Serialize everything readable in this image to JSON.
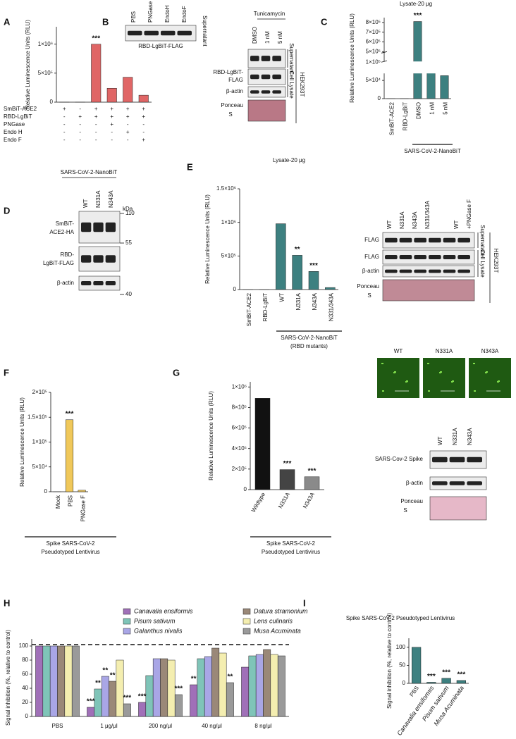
{
  "chart_data": [
    {
      "type": "bar",
      "label": "A",
      "ylabel": "Relative Luminescence Units (RLU)",
      "values": [
        0,
        0,
        1000000,
        240000,
        430000,
        120000
      ],
      "color": "#e06666",
      "ylim": [
        0,
        1300000
      ],
      "yticks": [
        0,
        {
          "value": 500000,
          "label": "5×10⁵"
        },
        {
          "value": 1000000,
          "label": "1×10⁶"
        }
      ],
      "annotations": [
        {
          "text": "***",
          "index": 2
        }
      ],
      "table": [
        {
          "label": "SmBiT-ACE2",
          "cells": [
            "+",
            "-",
            "+",
            "+",
            "+",
            "+"
          ]
        },
        {
          "label": "RBD-LgBiT",
          "cells": [
            "-",
            "+",
            "+",
            "+",
            "+",
            "+"
          ]
        },
        {
          "label": "PNGase",
          "cells": [
            "-",
            "-",
            "-",
            "+",
            "-",
            "-"
          ]
        },
        {
          "label": "Endo H",
          "cells": [
            "-",
            "-",
            "-",
            "-",
            "+",
            "-"
          ]
        },
        {
          "label": "Endo F",
          "cells": [
            "-",
            "-",
            "-",
            "-",
            "-",
            "+"
          ]
        }
      ]
    },
    {
      "type": "bar",
      "label": "C",
      "title": "Lysate-20 μg",
      "ylabel": "Relative Luminescence Units (RLU)",
      "categories": [
        "SmBiT-ACE2",
        "RBD-LgBiT",
        "DMSO",
        "1 nM",
        "5 nM"
      ],
      "values": [
        0,
        0,
        810000,
        88000,
        63000
      ],
      "color": "#3d8080",
      "ylim": [
        0,
        850000
      ],
      "ybreak": [
        100000,
        500000
      ],
      "yticks": [
        0,
        {
          "value": 50000,
          "label": "5×10⁴"
        },
        {
          "value": 100000,
          "label": "1×10⁵"
        },
        {
          "value": 500000,
          "label": "5×10⁵"
        },
        {
          "value": 600000,
          "label": "6×10⁵"
        },
        {
          "value": 700000,
          "label": "7×10⁵"
        },
        {
          "value": 800000,
          "label": "8×10⁵"
        }
      ],
      "annotations": [
        {
          "text": "***",
          "index": 2
        }
      ],
      "group_label": [
        "SARS-CoV-2-NanoBiT"
      ]
    },
    {
      "type": "bar",
      "label": "E",
      "title": "Lysate-20 μg",
      "ylabel": "Relative Luminescence Units (RLU)",
      "categories": [
        "SmBiT-ACE2",
        "RBD-LgBiT",
        "WT",
        "N331A",
        "N343A",
        "N331/343A"
      ],
      "values": [
        0,
        0,
        980000,
        510000,
        270000,
        30000
      ],
      "color": "#3d8080",
      "ylim": [
        0,
        1500000
      ],
      "yticks": [
        0,
        {
          "value": 500000,
          "label": "5×10⁵"
        },
        {
          "value": 1000000,
          "label": "1×10⁶"
        },
        {
          "value": 1500000,
          "label": "1.5×10⁶"
        }
      ],
      "annotations": [
        {
          "text": "**",
          "index": 3
        },
        {
          "text": "***",
          "index": 4
        }
      ],
      "group_label": [
        "SARS-CoV-2-NanoBiT",
        "(RBD mutants)"
      ]
    },
    {
      "type": "bar",
      "label": "F",
      "ylabel": "Relative Luminescence Units (RLU)",
      "categories": [
        "Mock",
        "PBS",
        "PNGase F"
      ],
      "values": [
        0,
        145000,
        3000
      ],
      "color": "#f0c85a",
      "ylim": [
        0,
        200000
      ],
      "yticks": [
        0,
        {
          "value": 50000,
          "label": "5×10⁴"
        },
        {
          "value": 100000,
          "label": "1×10⁵"
        },
        {
          "value": 150000,
          "label": "1.5×10⁵"
        },
        {
          "value": 200000,
          "label": "2×10⁵"
        }
      ],
      "annotations": [
        {
          "text": "***",
          "index": 1
        }
      ],
      "group_label": [
        "Spike SARS-CoV-2",
        "Pseudotyped Lentivirus"
      ]
    },
    {
      "type": "bar",
      "label": "G",
      "ylabel": "Relative Luminescence Units (RLU)",
      "categories": [
        "Wildtype",
        "N331A",
        "N343A"
      ],
      "values": [
        890000,
        195000,
        125000
      ],
      "colors": [
        "#111111",
        "#444444",
        "#8a8a8a"
      ],
      "ylim": [
        0,
        1050000
      ],
      "yticks": [
        0,
        {
          "value": 200000,
          "label": "2×10⁵"
        },
        {
          "value": 400000,
          "label": "4×10⁵"
        },
        {
          "value": 600000,
          "label": "6×10⁵"
        },
        {
          "value": 800000,
          "label": "8×10⁵"
        },
        {
          "value": 1000000,
          "label": "1×10⁶"
        }
      ],
      "annotations": [
        {
          "text": "***",
          "index": 1
        },
        {
          "text": "***",
          "index": 2
        }
      ],
      "group_label": [
        "Spike SARS-CoV-2",
        "Pseudotyped Lentivirus"
      ]
    },
    {
      "type": "bar",
      "label": "H",
      "ylabel": "Signal inhibition (%, relative to  control)",
      "categories": [
        "PBS",
        "1 μg/μl",
        "200 ng/μl",
        "40 ng/μl",
        "8 ng/μl"
      ],
      "series": [
        {
          "name": "Canavalia ensiformis",
          "color": "#a070b8",
          "values": [
            100,
            13,
            20,
            45,
            70
          ]
        },
        {
          "name": "Pisum sativum",
          "color": "#7fc4b8",
          "values": [
            100,
            39,
            58,
            82,
            86
          ]
        },
        {
          "name": "Galanthus nivalis",
          "color": "#a9a6e6",
          "values": [
            100,
            57,
            82,
            85,
            88
          ]
        },
        {
          "name": "Datura stramonium",
          "color": "#9a8878",
          "values": [
            100,
            50,
            82,
            97,
            95
          ]
        },
        {
          "name": "Lens culinaris",
          "color": "#f4eeb0",
          "values": [
            100,
            80,
            80,
            90,
            88
          ]
        },
        {
          "name": "Musa Acuminata",
          "color": "#9a9a9a",
          "values": [
            100,
            18,
            31,
            48,
            86
          ]
        }
      ],
      "ylim": [
        0,
        110
      ],
      "yticks": [
        0,
        20,
        40,
        60,
        80,
        100
      ],
      "reference_line": 102,
      "annotations": [
        {
          "text": "***",
          "series": 0,
          "index": 1
        },
        {
          "text": "**",
          "series": 1,
          "index": 1
        },
        {
          "text": "**",
          "series": 2,
          "index": 1
        },
        {
          "text": "**",
          "series": 3,
          "index": 1
        },
        {
          "text": "***",
          "series": 5,
          "index": 1
        },
        {
          "text": "***",
          "series": 0,
          "index": 2
        },
        {
          "text": "***",
          "series": 5,
          "index": 2
        },
        {
          "text": "**",
          "series": 0,
          "index": 3
        },
        {
          "text": "**",
          "series": 5,
          "index": 3
        }
      ]
    },
    {
      "type": "bar",
      "label": "I",
      "title": "Spike SARS-CoV-2 Pseudotyped Lentivirus",
      "ylabel": "Signal inhibition (%, relative to  control)",
      "categories": [
        "PBS",
        "Canavalia ensiformis",
        "Pisum sativum",
        "Musa Acuminata"
      ],
      "values": [
        100,
        3,
        14,
        8
      ],
      "color": "#3d8080",
      "ylim": [
        0,
        125
      ],
      "yticks": [
        0,
        50,
        100
      ],
      "annotations": [
        {
          "text": "***",
          "index": 1
        },
        {
          "text": "***",
          "index": 2
        },
        {
          "text": "***",
          "index": 3
        }
      ]
    }
  ],
  "blots": {
    "A": {
      "lanes": [
        "PBS",
        "PNGase",
        "EndoH",
        "EndoF"
      ],
      "row": "RBD-LgBiT-FLAG",
      "side": "Supernatant"
    },
    "B": {
      "letter": "B",
      "treatment": "Tunicamycin",
      "lanes": [
        "DMSO",
        "1 nM",
        "5 nM"
      ],
      "rows": [
        "RBD-LgBiT-",
        "FLAG",
        "β-actin",
        "Ponceau",
        "S"
      ],
      "fractions": [
        "Supernatant",
        "Cell Lysate"
      ],
      "cell_line": "HEK293T"
    },
    "D": {
      "letter": "D",
      "header": "SARS-CoV-2-NanoBiT",
      "lanes": [
        "WT",
        "N331A",
        "N343A"
      ],
      "unit": "kDa",
      "markers": [
        "110",
        "55",
        "40"
      ],
      "rows": [
        "SmBiT-",
        "ACE2-HA",
        "RBD-",
        "LgBiT-FLAG",
        "β-actin"
      ]
    },
    "E": {
      "lanes": [
        "WT",
        "N331A",
        "N343A",
        "N331/343A",
        "WT",
        "+PNGase F"
      ],
      "rows": [
        "FLAG",
        "FLAG",
        "β-actin",
        "Ponceau",
        "S"
      ],
      "fractions": [
        "Supernatant",
        "Cell Lysate"
      ],
      "cell_line": "HEK293T"
    },
    "G": {
      "images": [
        "WT",
        "N331A",
        "N343A"
      ],
      "lanes": [
        "WT",
        "N331A",
        "N343A"
      ],
      "rows": [
        "SARS-Cov-2 Spike",
        "β-actin",
        "Ponceau",
        "S"
      ]
    }
  }
}
